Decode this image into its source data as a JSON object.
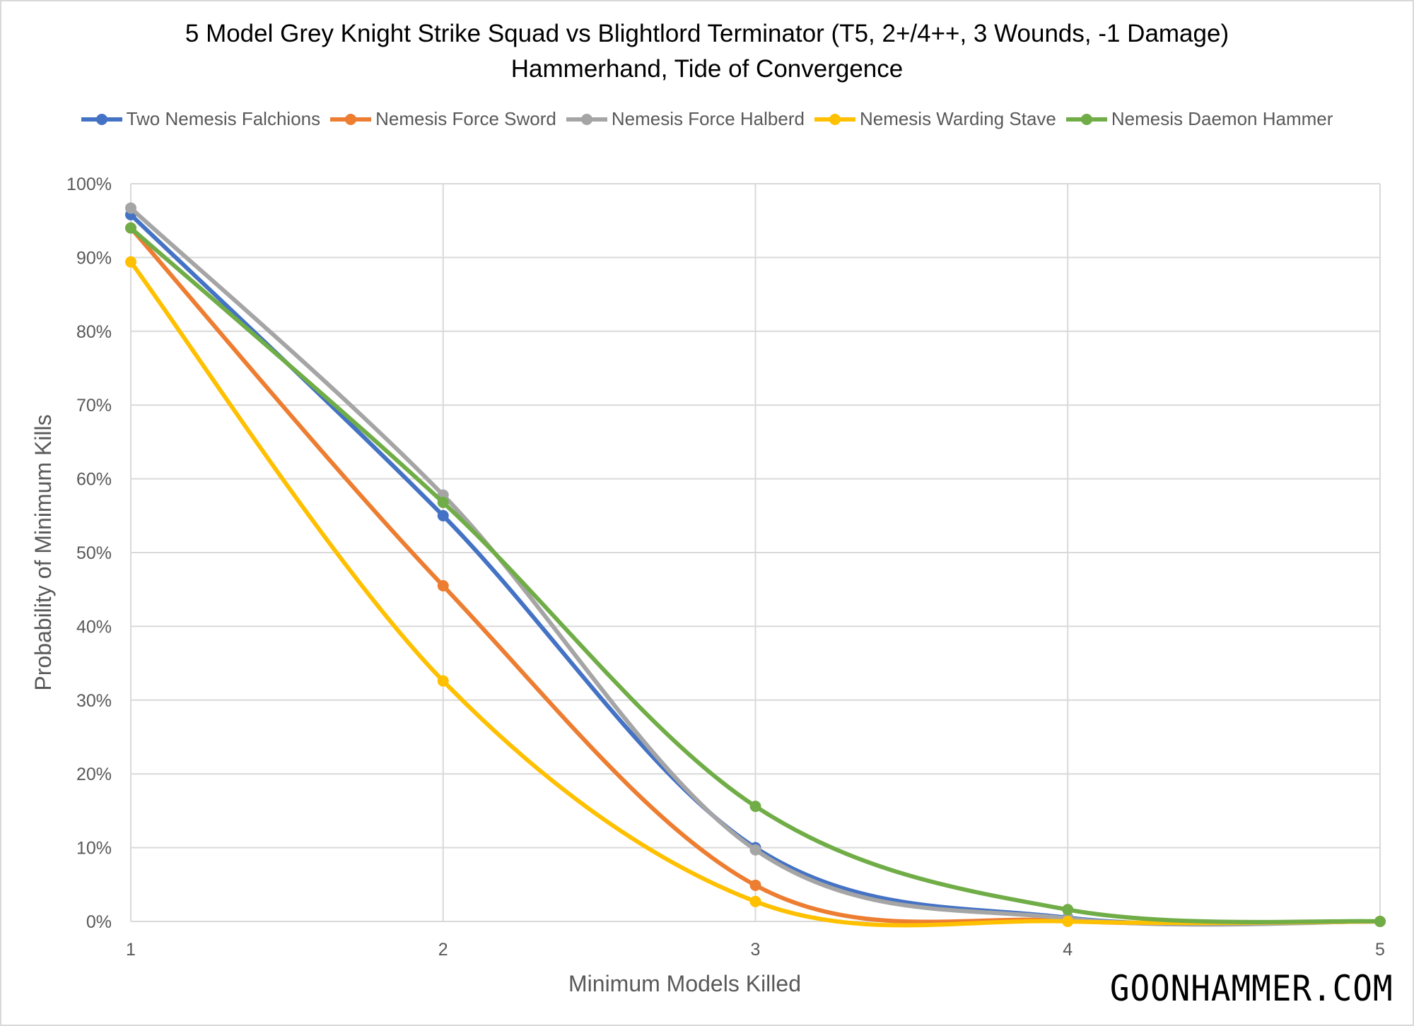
{
  "chart_data": {
    "type": "line",
    "title": "5 Model Grey Knight Strike Squad vs Blightlord Terminator (T5, 2+/4++, 3 Wounds, -1 Damage)",
    "subtitle": "Hammerhand, Tide of Convergence",
    "xlabel": "Minimum Models Killed",
    "ylabel": "Probability of Minimum Kills",
    "x": [
      1,
      2,
      3,
      4,
      5
    ],
    "xticks": [
      "1",
      "2",
      "3",
      "4",
      "5"
    ],
    "ylim": [
      0,
      1
    ],
    "yticks": [
      "0%",
      "10%",
      "20%",
      "30%",
      "40%",
      "50%",
      "60%",
      "70%",
      "80%",
      "90%",
      "100%"
    ],
    "grid": true,
    "smoothed": true,
    "legend_position": "top",
    "series": [
      {
        "name": "Two Nemesis Falchions",
        "color": "#4472c4",
        "values": [
          0.958,
          0.55,
          0.1,
          0.005,
          0.0
        ]
      },
      {
        "name": "Nemesis Force Sword",
        "color": "#ed7d31",
        "values": [
          0.94,
          0.455,
          0.049,
          0.001,
          0.0
        ]
      },
      {
        "name": "Nemesis Force Halberd",
        "color": "#a5a5a5",
        "values": [
          0.967,
          0.578,
          0.097,
          0.004,
          0.0
        ]
      },
      {
        "name": "Nemesis Warding Stave",
        "color": "#ffc000",
        "values": [
          0.894,
          0.326,
          0.027,
          0.0,
          0.0
        ]
      },
      {
        "name": "Nemesis Daemon Hammer",
        "color": "#70ad47",
        "values": [
          0.94,
          0.568,
          0.156,
          0.016,
          0.0
        ]
      }
    ]
  },
  "watermark": "GOONHAMMER.COM"
}
